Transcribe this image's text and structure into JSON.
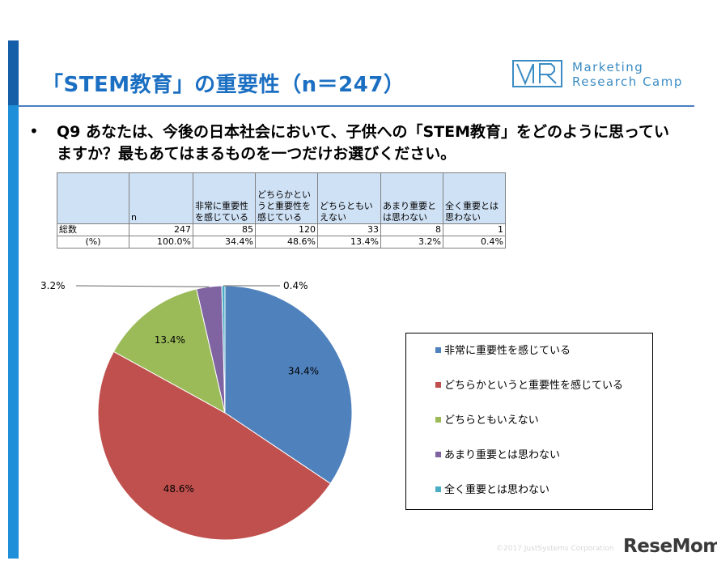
{
  "slide": {
    "title": "「STEM教育」の重要性（n＝247）",
    "logo_text": "Marketing\nResearch Camp",
    "question_bullet": "•",
    "question": "Q9 あなたは、今後の日本社会において、子供への「STEM教育」をどのように思っていますか？最もあてはまるものを一つだけお選びください。",
    "copyright": "©2017 JustSystems Corporation",
    "watermark": "ReseMom"
  },
  "table": {
    "headers": [
      "",
      "n",
      "非常に重要性を感じている",
      "どちらかというと重要性を感じている",
      "どちらともいえない",
      "あまり重要とは思わない",
      "全く重要とは思わない"
    ],
    "rows": [
      {
        "label": "総数",
        "cells": [
          "247",
          "85",
          "120",
          "33",
          "8",
          "1"
        ]
      },
      {
        "label": "(%)",
        "cells": [
          "100.0%",
          "34.4%",
          "48.6%",
          "13.4%",
          "3.2%",
          "0.4%"
        ]
      }
    ]
  },
  "chart_data": {
    "type": "pie",
    "title": "",
    "slices": [
      {
        "label": "非常に重要性を感じている",
        "value": 34.4,
        "display": "34.4%",
        "color": "#4f81bd"
      },
      {
        "label": "どちらかというと重要性を感じている",
        "value": 48.6,
        "display": "48.6%",
        "color": "#c0504d"
      },
      {
        "label": "どちらともいえない",
        "value": 13.4,
        "display": "13.4%",
        "color": "#9bbb59"
      },
      {
        "label": "あまり重要とは思わない",
        "value": 3.2,
        "display": "3.2%",
        "color": "#8064a2"
      },
      {
        "label": "全く重要とは思わない",
        "value": 0.4,
        "display": "0.4%",
        "color": "#4bacc6"
      }
    ],
    "legend_position": "right"
  },
  "colors": {
    "title": "#1b6fc2",
    "accent_bar": "#1e8fd8",
    "table_header_bg": "#cfe1f5"
  }
}
